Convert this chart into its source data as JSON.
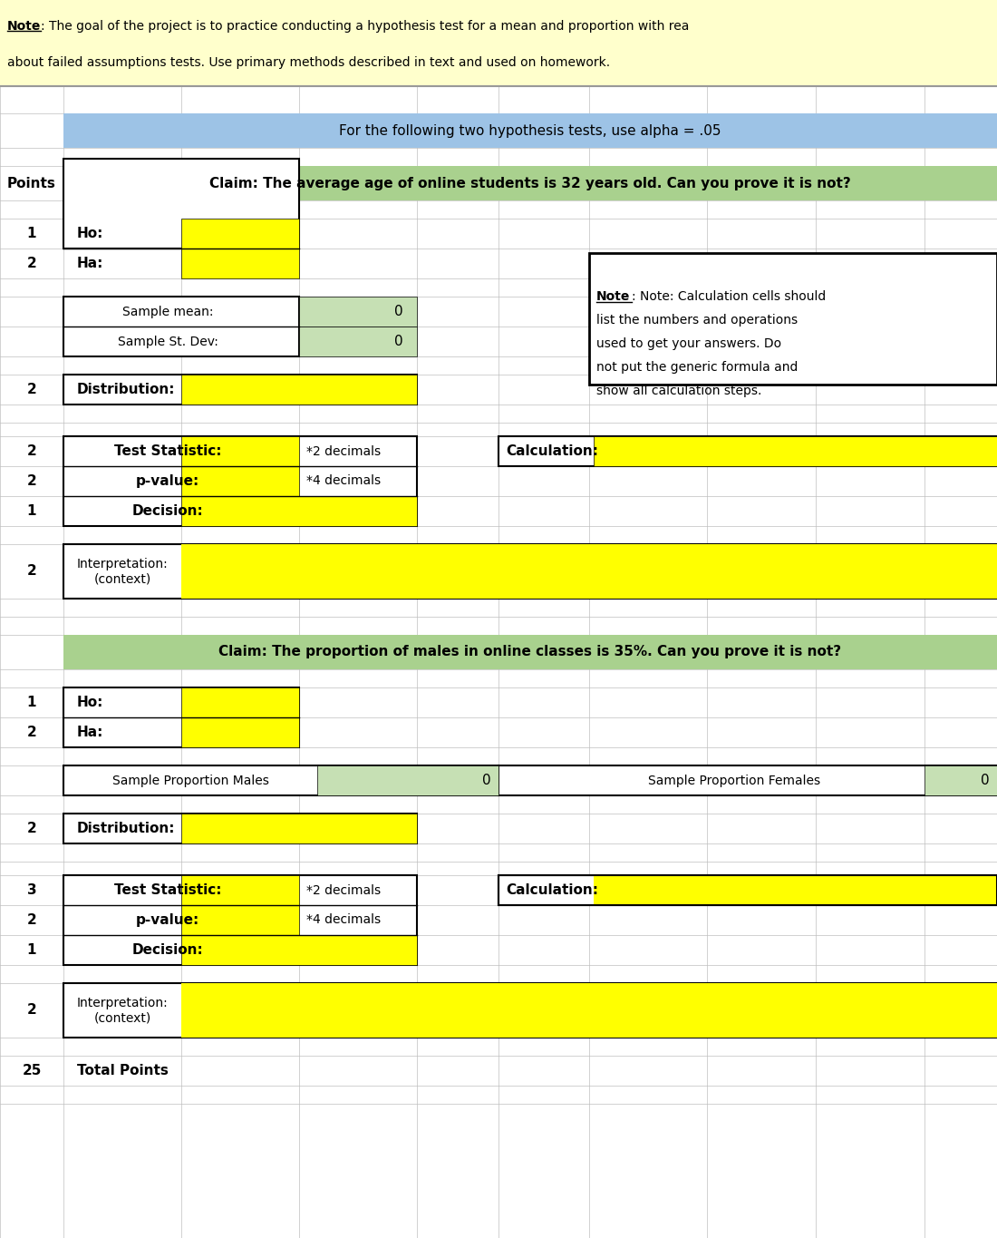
{
  "fig_width": 11.0,
  "fig_height": 13.65,
  "bg_color": "#ffffff",
  "note_bg": "#ffffcc",
  "note_text_line1": "Note: The goal of the project is to practice conducting a hypothesis test for a mean and proportion with rea",
  "note_text_line2": "about failed assumptions tests. Use primary methods described in text and used on homework.",
  "blue_header_bg": "#9dc3e6",
  "blue_header_text": "For the following two hypothesis tests, use alpha = .05",
  "green_header_bg": "#a9d18e",
  "claim1_text": "Claim: The average age of online students is 32 years old. Can you prove it is not?",
  "claim2_text": "Claim: The proportion of males in online classes is 35%. Can you prove it is not?",
  "yellow": "#ffff00",
  "light_green": "#c6e0b4",
  "grid_color": "#bfbfbf",
  "cell_border": "#000000",
  "text_color": "#000000",
  "note_box_text": [
    "Note: Calculation cells should",
    "list the numbers and operations",
    "used to get your answers. Do",
    "not put the generic formula and",
    "show all calculation steps."
  ]
}
